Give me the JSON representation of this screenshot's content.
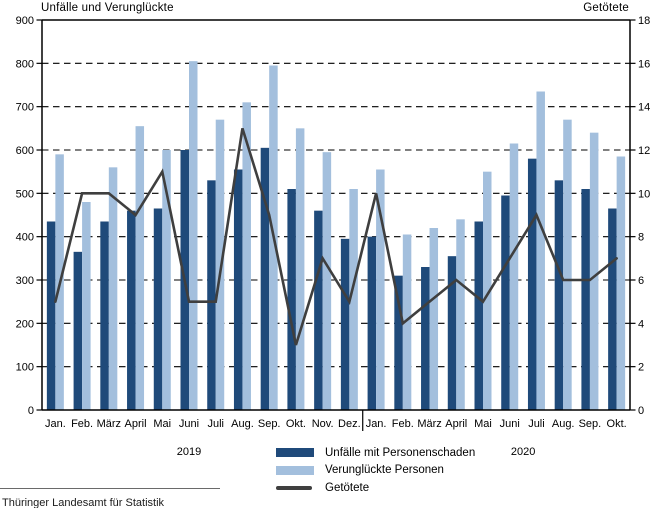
{
  "chart_data": {
    "type": "bar+line",
    "title_left": "Unfälle und Verunglückte",
    "title_right": "Getötete",
    "left_axis": {
      "title": "Unfälle und Verunglückte",
      "min": 0,
      "max": 900,
      "step": 100
    },
    "right_axis": {
      "title": "Getötete",
      "min": 0,
      "max": 18,
      "step": 2
    },
    "grid": "horizontal-dashed",
    "legend_position": "bottom",
    "categories": [
      "Jan.",
      "Feb.",
      "März",
      "April",
      "Mai",
      "Juni",
      "Juli",
      "Aug.",
      "Sep.",
      "Okt.",
      "Nov.",
      "Dez.",
      "Jan.",
      "Feb.",
      "März",
      "April",
      "Mai",
      "Juni",
      "Juli",
      "Aug.",
      "Sep.",
      "Okt."
    ],
    "years": [
      {
        "label": "2019"
      },
      {
        "label": "2020"
      }
    ],
    "series": [
      {
        "name": "Unfälle mit Personenschaden",
        "type": "bar",
        "axis": "left",
        "color": "#1f4a7a",
        "values": [
          435,
          365,
          435,
          460,
          465,
          600,
          530,
          555,
          605,
          510,
          460,
          395,
          400,
          310,
          330,
          355,
          435,
          495,
          580,
          530,
          510,
          465
        ]
      },
      {
        "name": "Verunglückte Personen",
        "type": "bar",
        "axis": "left",
        "color": "#a3bfdd",
        "values": [
          590,
          480,
          560,
          655,
          600,
          805,
          670,
          710,
          795,
          650,
          595,
          510,
          555,
          405,
          420,
          440,
          550,
          615,
          735,
          670,
          640,
          585
        ]
      },
      {
        "name": "Getötete",
        "type": "line",
        "axis": "right",
        "color": "#3f3f3f",
        "values": [
          5,
          10,
          10,
          9,
          11,
          5,
          5,
          13,
          9,
          3,
          7,
          5,
          10,
          4,
          5,
          6,
          5,
          7,
          9,
          6,
          6,
          7
        ]
      }
    ]
  },
  "footer": {
    "source": "Thüringer Landesamt für Statistik"
  }
}
